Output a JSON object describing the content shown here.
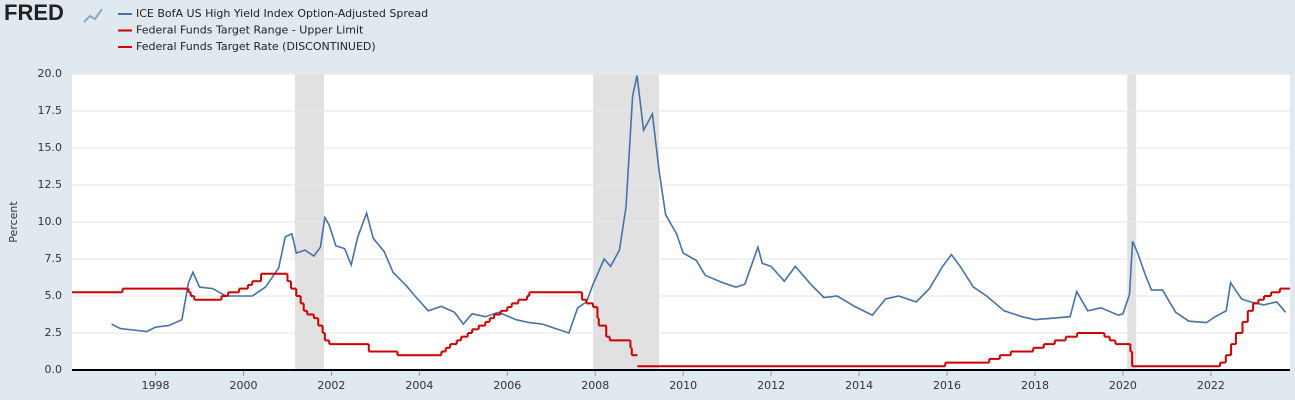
{
  "logo": "FRED",
  "chart_data": {
    "type": "line",
    "ylabel": "Percent",
    "xlim": [
      1996.1,
      2023.8
    ],
    "ylim": [
      0,
      20
    ],
    "xticks": [
      1998,
      2000,
      2002,
      2004,
      2006,
      2008,
      2010,
      2012,
      2014,
      2016,
      2018,
      2020,
      2022
    ],
    "yticks": [
      {
        "value": 0,
        "label": "0.0"
      },
      2.5,
      {
        "value": 5,
        "label": "5.0"
      },
      7.5,
      {
        "value": 10,
        "label": "10.0"
      },
      12.5,
      {
        "value": 15,
        "label": "15.0"
      },
      17.5,
      {
        "value": 20,
        "label": "20.0"
      }
    ],
    "grid": true,
    "recessions": [
      [
        2001.17,
        2001.83
      ],
      [
        2007.95,
        2009.45
      ],
      [
        2020.1,
        2020.3
      ]
    ],
    "series": [
      {
        "name": "ICE BofA US High Yield Index Option-Adjusted Spread",
        "color": "#4572a7",
        "drawstyle": "line",
        "x": [
          1997.0,
          1997.2,
          1997.5,
          1997.8,
          1998.0,
          1998.3,
          1998.6,
          1998.75,
          1998.85,
          1999.0,
          1999.3,
          1999.6,
          1999.9,
          2000.2,
          2000.5,
          2000.8,
          2000.95,
          2001.1,
          2001.2,
          2001.4,
          2001.6,
          2001.75,
          2001.85,
          2001.95,
          2002.1,
          2002.3,
          2002.45,
          2002.6,
          2002.8,
          2002.95,
          2003.2,
          2003.4,
          2003.7,
          2003.9,
          2004.2,
          2004.5,
          2004.8,
          2005.0,
          2005.2,
          2005.5,
          2005.8,
          2006.2,
          2006.5,
          2006.8,
          2007.1,
          2007.4,
          2007.6,
          2007.8,
          2007.95,
          2008.2,
          2008.35,
          2008.55,
          2008.7,
          2008.85,
          2008.95,
          2009.1,
          2009.3,
          2009.45,
          2009.6,
          2009.85,
          2010.0,
          2010.3,
          2010.5,
          2010.9,
          2011.2,
          2011.4,
          2011.7,
          2011.8,
          2012.0,
          2012.3,
          2012.55,
          2012.9,
          2013.2,
          2013.5,
          2013.9,
          2014.3,
          2014.6,
          2014.9,
          2015.3,
          2015.6,
          2015.9,
          2016.1,
          2016.3,
          2016.6,
          2016.9,
          2017.3,
          2017.7,
          2018.0,
          2018.4,
          2018.8,
          2018.95,
          2019.2,
          2019.5,
          2019.9,
          2020.0,
          2020.15,
          2020.22,
          2020.35,
          2020.5,
          2020.65,
          2020.9,
          2021.2,
          2021.5,
          2021.9,
          2022.1,
          2022.35,
          2022.45,
          2022.7,
          2022.9,
          2023.2,
          2023.5,
          2023.7
        ],
        "values": [
          3.1,
          2.8,
          2.7,
          2.6,
          2.9,
          3.0,
          3.4,
          5.9,
          6.6,
          5.6,
          5.5,
          5.0,
          5.0,
          5.0,
          5.6,
          6.9,
          9.0,
          9.2,
          7.9,
          8.1,
          7.7,
          8.3,
          10.3,
          9.8,
          8.4,
          8.2,
          7.1,
          9.0,
          10.6,
          8.9,
          8.0,
          6.6,
          5.7,
          5.0,
          4.0,
          4.3,
          3.9,
          3.1,
          3.8,
          3.6,
          3.9,
          3.4,
          3.2,
          3.1,
          2.8,
          2.5,
          4.2,
          4.6,
          5.8,
          7.5,
          7.0,
          8.1,
          11.0,
          18.5,
          19.9,
          16.2,
          17.3,
          13.5,
          10.5,
          9.2,
          7.9,
          7.4,
          6.4,
          5.9,
          5.6,
          5.8,
          8.3,
          7.2,
          7.0,
          6.0,
          7.0,
          5.8,
          4.9,
          5.0,
          4.3,
          3.7,
          4.8,
          5.0,
          4.6,
          5.5,
          7.0,
          7.8,
          7.0,
          5.6,
          5.0,
          4.0,
          3.6,
          3.4,
          3.5,
          3.6,
          5.3,
          4.0,
          4.2,
          3.7,
          3.8,
          5.1,
          8.7,
          7.8,
          6.5,
          5.4,
          5.4,
          3.9,
          3.3,
          3.2,
          3.6,
          4.0,
          5.9,
          4.8,
          4.6,
          4.4,
          4.6,
          3.9
        ]
      },
      {
        "name": "Federal Funds Target Range - Upper Limit",
        "color": "#cc0000",
        "drawstyle": "steps-post",
        "x": [
          2008.96,
          2015.96,
          2016.96,
          2017.2,
          2017.45,
          2017.96,
          2018.2,
          2018.45,
          2018.7,
          2018.96,
          2019.58,
          2019.7,
          2019.83,
          2020.17,
          2020.21,
          2022.21,
          2022.34,
          2022.46,
          2022.57,
          2022.72,
          2022.84,
          2022.96,
          2023.08,
          2023.21,
          2023.37,
          2023.57,
          2023.8
        ],
        "values": [
          0.25,
          0.5,
          0.75,
          1.0,
          1.25,
          1.5,
          1.75,
          2.0,
          2.25,
          2.5,
          2.25,
          2.0,
          1.75,
          1.25,
          0.25,
          0.5,
          1.0,
          1.75,
          2.5,
          3.25,
          4.0,
          4.5,
          4.75,
          5.0,
          5.25,
          5.5,
          5.5
        ]
      },
      {
        "name": "Federal Funds Target Rate (DISCONTINUED)",
        "color": "#cc0000",
        "drawstyle": "steps-post",
        "x": [
          1996.1,
          1997.25,
          1998.75,
          1998.8,
          1998.88,
          1999.5,
          1999.65,
          1999.9,
          2000.1,
          2000.2,
          2000.4,
          2001.0,
          2001.08,
          2001.2,
          2001.3,
          2001.37,
          2001.45,
          2001.6,
          2001.7,
          2001.8,
          2001.85,
          2001.95,
          2002.85,
          2003.5,
          2004.5,
          2004.6,
          2004.7,
          2004.85,
          2004.95,
          2005.1,
          2005.2,
          2005.35,
          2005.5,
          2005.6,
          2005.7,
          2005.85,
          2006.0,
          2006.1,
          2006.25,
          2006.45,
          2006.5,
          2007.7,
          2007.8,
          2007.95,
          2008.05,
          2008.08,
          2008.25,
          2008.33,
          2008.8,
          2008.83,
          2008.96
        ],
        "values": [
          5.25,
          5.5,
          5.25,
          5.0,
          4.75,
          5.0,
          5.25,
          5.5,
          5.75,
          6.0,
          6.5,
          6.0,
          5.5,
          5.0,
          4.5,
          4.0,
          3.75,
          3.5,
          3.0,
          2.5,
          2.0,
          1.75,
          1.25,
          1.0,
          1.25,
          1.5,
          1.75,
          2.0,
          2.25,
          2.5,
          2.75,
          3.0,
          3.25,
          3.5,
          3.75,
          4.0,
          4.25,
          4.5,
          4.75,
          5.0,
          5.25,
          4.75,
          4.5,
          4.25,
          3.5,
          3.0,
          2.25,
          2.0,
          1.5,
          1.0,
          1.0
        ]
      }
    ]
  }
}
